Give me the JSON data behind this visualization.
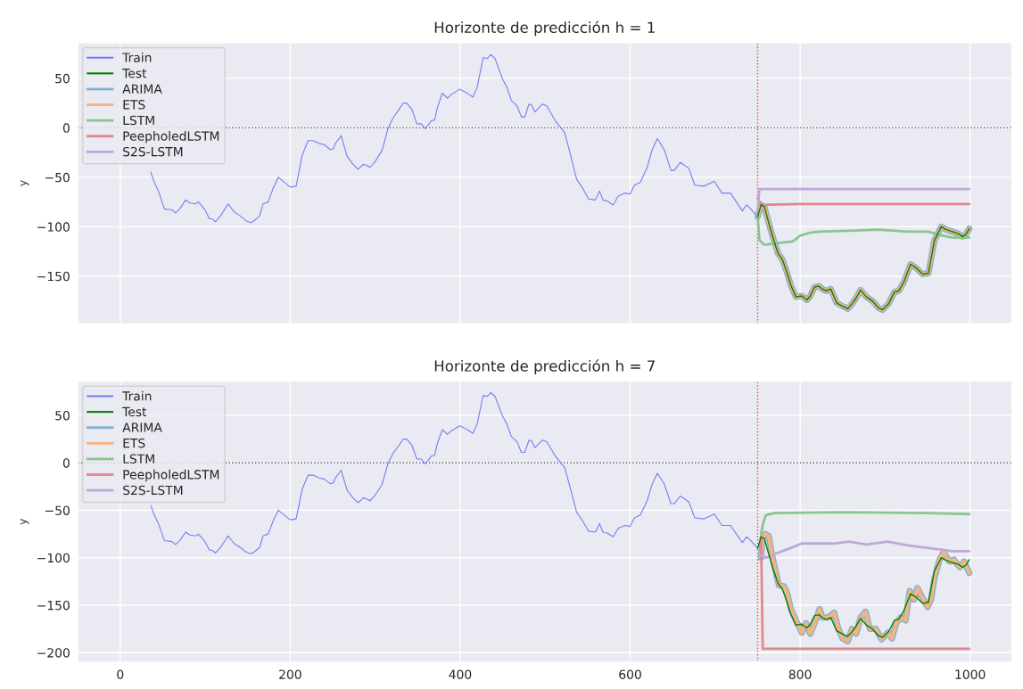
{
  "chart_data": [
    {
      "type": "line",
      "title": "Horizonte de predicción h = 1",
      "ylabel": "y",
      "xlim": [
        -50,
        1049
      ],
      "xticks": [
        0,
        200,
        400,
        600,
        800,
        1000
      ],
      "ylim": [
        -198,
        86
      ],
      "yticks": [
        -150,
        -100,
        -50,
        0,
        50
      ],
      "tick_labels": "y",
      "grid": true,
      "legend": "top left",
      "ref_lines": [
        {
          "axis": "y",
          "value": 0,
          "color": "#555555",
          "line_style": "dotted"
        },
        {
          "axis": "x",
          "value": 750,
          "color": "#ff4040",
          "line_style": "dotted"
        }
      ],
      "series": [
        {
          "name": "Train",
          "color": "#7b7bf5",
          "x": [
            36,
            40,
            45,
            52,
            61,
            65,
            70,
            77,
            82,
            89,
            92,
            99,
            105,
            108,
            112,
            118,
            127,
            134,
            141,
            148,
            154,
            159,
            164,
            168,
            174,
            180,
            186,
            193,
            200,
            207,
            214,
            221,
            227,
            234,
            240,
            247,
            251,
            253,
            260,
            267,
            274,
            280,
            286,
            290,
            294,
            300,
            308,
            315,
            321,
            326,
            333,
            337,
            343,
            349,
            354,
            359,
            366,
            370,
            373,
            379,
            385,
            390,
            394,
            399,
            404,
            410,
            415,
            420,
            427,
            432,
            436,
            441,
            450,
            455,
            460,
            467,
            472,
            476,
            481,
            484,
            488,
            497,
            502,
            512,
            523,
            530,
            537,
            544,
            551,
            559,
            564,
            568,
            573,
            580,
            586,
            594,
            600,
            605,
            612,
            620,
            626,
            632,
            640,
            648,
            652,
            659,
            669,
            676,
            687,
            699,
            708,
            718,
            725,
            732,
            737,
            742,
            748,
            750
          ],
          "values": [
            -45,
            -55,
            -64,
            -82,
            -83,
            -86,
            -82,
            -73,
            -76,
            -77,
            -75,
            -82,
            -92,
            -92,
            -95,
            -89,
            -77,
            -85,
            -89,
            -94,
            -96,
            -93,
            -89,
            -77,
            -75,
            -61,
            -50,
            -55,
            -60,
            -59,
            -28,
            -13,
            -13,
            -16,
            -17,
            -22,
            -21,
            -16,
            -8,
            -29,
            -37,
            -42,
            -37,
            -38,
            -40,
            -34,
            -23,
            -1,
            10,
            16,
            25,
            25,
            19,
            4,
            4,
            -1,
            7,
            8,
            20,
            35,
            30,
            34,
            36,
            39,
            37,
            34,
            31,
            41,
            71,
            70,
            74,
            70,
            49,
            41,
            28,
            22,
            11,
            11,
            24,
            23,
            16,
            24,
            22,
            7,
            -5,
            -28,
            -52,
            -61,
            -72,
            -73,
            -64,
            -73,
            -74,
            -78,
            -69,
            -66,
            -67,
            -58,
            -55,
            -40,
            -22,
            -11,
            -22,
            -43,
            -43,
            -35,
            -41,
            -58,
            -59,
            -54,
            -66,
            -66,
            -75,
            -84,
            -78,
            -82,
            -88,
            -90
          ]
        },
        {
          "name": "Test",
          "color": "#008000",
          "x": [
            750,
            754,
            758,
            763,
            768,
            774,
            779,
            784,
            789,
            795,
            802,
            808,
            812,
            817,
            822,
            826,
            831,
            836,
            843,
            849,
            856,
            861,
            866,
            871,
            878,
            885,
            892,
            897,
            904,
            911,
            916,
            922,
            930,
            937,
            944,
            951,
            958,
            966,
            972,
            979,
            986,
            991,
            995,
            999
          ],
          "values": [
            -90,
            -78,
            -80,
            -96,
            -111,
            -127,
            -133,
            -145,
            -159,
            -171,
            -170,
            -174,
            -170,
            -161,
            -160,
            -163,
            -165,
            -163,
            -177,
            -180,
            -183,
            -178,
            -172,
            -164,
            -171,
            -175,
            -182,
            -184,
            -178,
            -166,
            -165,
            -156,
            -138,
            -142,
            -148,
            -147,
            -114,
            -100,
            -103,
            -105,
            -107,
            -110,
            -108,
            -102
          ]
        },
        {
          "name": "ARIMA",
          "color": "#84b0d3",
          "x": [
            750,
            754,
            758,
            763,
            768,
            774,
            779,
            784,
            789,
            795,
            802,
            808,
            812,
            817,
            822,
            826,
            831,
            836,
            843,
            849,
            856,
            861,
            866,
            871,
            878,
            885,
            892,
            897,
            904,
            911,
            916,
            922,
            930,
            937,
            944,
            951,
            958,
            966,
            972,
            979,
            986,
            991,
            995,
            999
          ],
          "values": [
            -90,
            -78,
            -80,
            -96,
            -111,
            -127,
            -133,
            -145,
            -159,
            -171,
            -170,
            -174,
            -170,
            -161,
            -160,
            -163,
            -165,
            -163,
            -177,
            -180,
            -183,
            -178,
            -172,
            -164,
            -171,
            -175,
            -182,
            -184,
            -178,
            -166,
            -165,
            -156,
            -138,
            -142,
            -148,
            -147,
            -114,
            -100,
            -103,
            -105,
            -107,
            -110,
            -108,
            -102
          ]
        },
        {
          "name": "ETS",
          "color": "#f4b480",
          "x": [
            750,
            754,
            758,
            763,
            768,
            774,
            779,
            784,
            789,
            795,
            802,
            808,
            812,
            817,
            822,
            826,
            831,
            836,
            843,
            849,
            856,
            861,
            866,
            871,
            878,
            885,
            892,
            897,
            904,
            911,
            916,
            922,
            930,
            937,
            944,
            951,
            958,
            966,
            972,
            979,
            986,
            991,
            995,
            999
          ],
          "values": [
            -90,
            -78,
            -80,
            -96,
            -111,
            -127,
            -133,
            -145,
            -159,
            -171,
            -170,
            -174,
            -170,
            -161,
            -160,
            -163,
            -165,
            -163,
            -177,
            -180,
            -183,
            -178,
            -172,
            -164,
            -171,
            -175,
            -182,
            -184,
            -178,
            -166,
            -165,
            -156,
            -138,
            -142,
            -148,
            -147,
            -114,
            -100,
            -103,
            -105,
            -107,
            -110,
            -108,
            -102
          ]
        },
        {
          "name": "LSTM",
          "color": "#8bc58f",
          "x": [
            750,
            752,
            757,
            760,
            770,
            791,
            796,
            800,
            812,
            823,
            857,
            892,
            927,
            951,
            962,
            979,
            999
          ],
          "values": [
            -88,
            -113,
            -118,
            -118,
            -117,
            -115,
            -112,
            -109,
            -106,
            -105,
            -104,
            -103,
            -105,
            -105,
            -108,
            -111,
            -111
          ]
        },
        {
          "name": "PeepholedLSTM",
          "color": "#e0888d",
          "x": [
            750,
            754,
            800,
            900,
            999
          ],
          "values": [
            -71,
            -78,
            -77,
            -77,
            -77
          ]
        },
        {
          "name": "S2S-LSTM",
          "color": "#bfa8d7",
          "x": [
            750,
            752,
            999
          ],
          "values": [
            -88,
            -62,
            -62
          ]
        }
      ]
    },
    {
      "type": "line",
      "title": "Horizonte de predicción h = 7",
      "ylabel": "y",
      "xlim": [
        -50,
        1049
      ],
      "xticks": [
        0,
        200,
        400,
        600,
        800,
        1000
      ],
      "ylim": [
        -210,
        86
      ],
      "yticks": [
        -200,
        -150,
        -100,
        -50,
        0,
        50
      ],
      "grid": true,
      "legend": "top left",
      "ref_lines": [
        {
          "axis": "y",
          "value": 0,
          "color": "#555555",
          "line_style": "dotted"
        },
        {
          "axis": "x",
          "value": 750,
          "color": "#ff4040",
          "line_style": "dotted"
        }
      ],
      "series": [
        {
          "name": "Train",
          "color": "#7b7bf5",
          "x": [
            36,
            40,
            45,
            52,
            61,
            65,
            70,
            77,
            82,
            89,
            92,
            99,
            105,
            108,
            112,
            118,
            127,
            134,
            141,
            148,
            154,
            159,
            164,
            168,
            174,
            180,
            186,
            193,
            200,
            207,
            214,
            221,
            227,
            234,
            240,
            247,
            251,
            253,
            260,
            267,
            274,
            280,
            286,
            290,
            294,
            300,
            308,
            315,
            321,
            326,
            333,
            337,
            343,
            349,
            354,
            359,
            366,
            370,
            373,
            379,
            385,
            390,
            394,
            399,
            404,
            410,
            415,
            420,
            427,
            432,
            436,
            441,
            450,
            455,
            460,
            467,
            472,
            476,
            481,
            484,
            488,
            497,
            502,
            512,
            523,
            530,
            537,
            544,
            551,
            559,
            564,
            568,
            573,
            580,
            586,
            594,
            600,
            605,
            612,
            620,
            626,
            632,
            640,
            648,
            652,
            659,
            669,
            676,
            687,
            699,
            708,
            718,
            725,
            732,
            737,
            742,
            748,
            750
          ],
          "values": [
            -45,
            -55,
            -64,
            -82,
            -83,
            -86,
            -82,
            -73,
            -76,
            -77,
            -75,
            -82,
            -92,
            -92,
            -95,
            -89,
            -77,
            -85,
            -89,
            -94,
            -96,
            -93,
            -89,
            -77,
            -75,
            -61,
            -50,
            -55,
            -60,
            -59,
            -28,
            -13,
            -13,
            -16,
            -17,
            -22,
            -21,
            -16,
            -8,
            -29,
            -37,
            -42,
            -37,
            -38,
            -40,
            -34,
            -23,
            -1,
            10,
            16,
            25,
            25,
            19,
            4,
            4,
            -1,
            7,
            8,
            20,
            35,
            30,
            34,
            36,
            39,
            37,
            34,
            31,
            41,
            71,
            70,
            74,
            70,
            49,
            41,
            28,
            22,
            11,
            11,
            24,
            23,
            16,
            24,
            22,
            7,
            -5,
            -28,
            -52,
            -61,
            -72,
            -73,
            -64,
            -73,
            -74,
            -78,
            -69,
            -66,
            -67,
            -58,
            -55,
            -40,
            -22,
            -11,
            -22,
            -43,
            -43,
            -35,
            -41,
            -58,
            -59,
            -54,
            -66,
            -66,
            -75,
            -84,
            -78,
            -82,
            -88,
            -90
          ]
        },
        {
          "name": "Test",
          "color": "#008000",
          "x": [
            750,
            754,
            758,
            763,
            768,
            774,
            779,
            784,
            789,
            795,
            802,
            808,
            812,
            817,
            822,
            826,
            831,
            836,
            843,
            849,
            856,
            861,
            866,
            871,
            878,
            885,
            892,
            897,
            904,
            911,
            916,
            922,
            930,
            937,
            944,
            951,
            958,
            966,
            972,
            979,
            986,
            991,
            995,
            999
          ],
          "values": [
            -90,
            -78,
            -80,
            -96,
            -111,
            -127,
            -133,
            -145,
            -159,
            -171,
            -170,
            -174,
            -170,
            -161,
            -160,
            -163,
            -165,
            -163,
            -177,
            -180,
            -183,
            -178,
            -172,
            -164,
            -171,
            -175,
            -182,
            -184,
            -178,
            -166,
            -165,
            -156,
            -138,
            -142,
            -148,
            -147,
            -114,
            -100,
            -103,
            -105,
            -107,
            -110,
            -108,
            -102
          ]
        },
        {
          "name": "ARIMA",
          "color": "#84b0d3",
          "x": [
            754,
            756,
            759,
            763,
            767,
            770,
            775,
            781,
            785,
            789,
            795,
            802,
            807,
            812,
            817,
            823,
            826,
            833,
            840,
            845,
            850,
            856,
            861,
            866,
            871,
            877,
            882,
            889,
            896,
            903,
            908,
            913,
            918,
            924,
            929,
            934,
            938,
            945,
            950,
            954,
            958,
            964,
            969,
            972,
            976,
            981,
            985,
            988,
            993,
            999
          ],
          "values": [
            -100,
            -78,
            -75,
            -77,
            -97,
            -110,
            -129,
            -130,
            -138,
            -154,
            -166,
            -179,
            -169,
            -180,
            -169,
            -154,
            -163,
            -163,
            -158,
            -175,
            -185,
            -188,
            -175,
            -180,
            -163,
            -157,
            -175,
            -175,
            -186,
            -179,
            -185,
            -169,
            -163,
            -166,
            -135,
            -144,
            -132,
            -144,
            -152,
            -144,
            -122,
            -102,
            -94,
            -99,
            -104,
            -102,
            -107,
            -110,
            -104,
            -116
          ]
        },
        {
          "name": "ETS",
          "color": "#f4b480",
          "x": [
            754,
            756,
            759,
            763,
            767,
            770,
            775,
            781,
            785,
            789,
            795,
            802,
            807,
            812,
            817,
            823,
            826,
            833,
            840,
            845,
            850,
            856,
            861,
            866,
            871,
            877,
            882,
            889,
            896,
            903,
            908,
            913,
            918,
            924,
            929,
            934,
            938,
            945,
            950,
            954,
            958,
            964,
            969,
            972,
            976,
            981,
            985,
            988,
            993,
            999
          ],
          "values": [
            -100,
            -78,
            -75,
            -77,
            -97,
            -110,
            -129,
            -130,
            -138,
            -154,
            -166,
            -179,
            -169,
            -180,
            -169,
            -154,
            -163,
            -163,
            -158,
            -175,
            -185,
            -188,
            -175,
            -180,
            -163,
            -157,
            -175,
            -175,
            -186,
            -179,
            -185,
            -169,
            -163,
            -166,
            -135,
            -144,
            -132,
            -144,
            -152,
            -144,
            -122,
            -102,
            -94,
            -99,
            -104,
            -102,
            -107,
            -110,
            -104,
            -116
          ]
        },
        {
          "name": "LSTM",
          "color": "#8bc58f",
          "x": [
            754,
            757,
            760,
            770,
            850,
            950,
            999
          ],
          "values": [
            -75,
            -62,
            -55,
            -53,
            -52,
            -53,
            -54
          ]
        },
        {
          "name": "PeepholedLSTM",
          "color": "#e0888d",
          "x": [
            754,
            756,
            999
          ],
          "values": [
            -78,
            -196,
            -196
          ]
        },
        {
          "name": "S2S-LSTM",
          "color": "#bfa8d7",
          "x": [
            754,
            760,
            770,
            788,
            802,
            823,
            840,
            857,
            878,
            903,
            927,
            945,
            962,
            979,
            999
          ],
          "values": [
            -97,
            -100,
            -96,
            -90,
            -85,
            -85,
            -85,
            -83,
            -86,
            -83,
            -87,
            -89,
            -91,
            -93,
            -93
          ]
        }
      ]
    }
  ]
}
